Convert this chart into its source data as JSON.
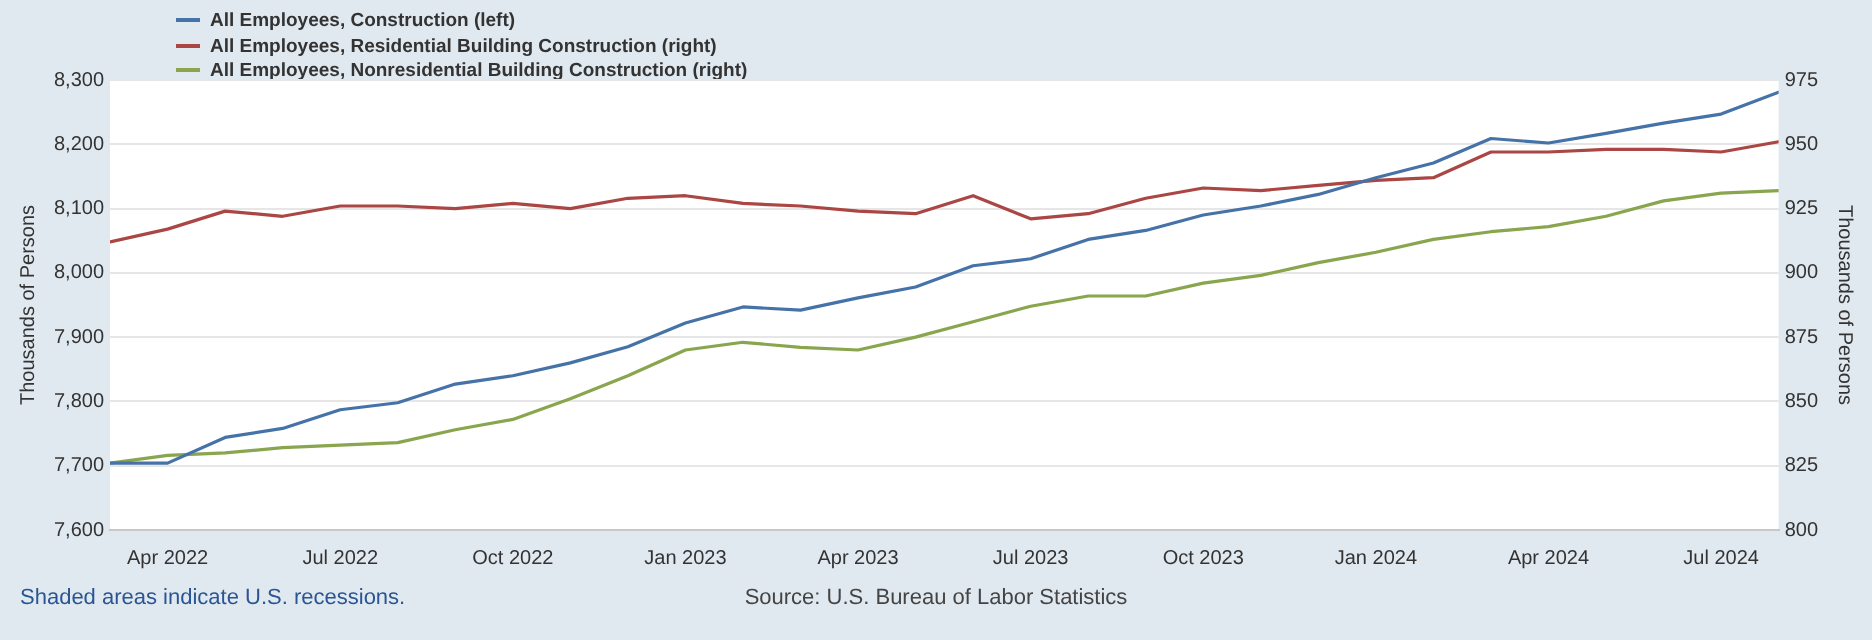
{
  "chart_data": {
    "type": "line",
    "ylabel": "Thousands of Persons",
    "y2label": "Thousands of Persons",
    "x": [
      "2022-03",
      "2022-04",
      "2022-05",
      "2022-06",
      "2022-07",
      "2022-08",
      "2022-09",
      "2022-10",
      "2022-11",
      "2022-12",
      "2023-01",
      "2023-02",
      "2023-03",
      "2023-04",
      "2023-05",
      "2023-06",
      "2023-07",
      "2023-08",
      "2023-09",
      "2023-10",
      "2023-11",
      "2023-12",
      "2024-01",
      "2024-02",
      "2024-03",
      "2024-04",
      "2024-05",
      "2024-06",
      "2024-07",
      "2024-08"
    ],
    "series": [
      {
        "name": "All Employees, Construction (left)",
        "color": "#4572a7",
        "values": [
          7704,
          7704,
          7744,
          7758,
          7787,
          7798,
          7827,
          7840,
          7860,
          7885,
          7922,
          7947,
          7942,
          7961,
          7978,
          8011,
          8022,
          8052,
          8066,
          8090,
          8104,
          8122,
          8148,
          8171,
          8209,
          8202,
          8217,
          8233,
          8247,
          8281
        ]
      },
      {
        "name": "All Employees, Residential Building Construction (right)",
        "color": "#aa4643",
        "axis": "y2",
        "values": [
          912,
          917,
          924,
          922,
          926,
          926,
          925,
          927,
          925,
          929,
          930,
          927,
          926,
          924,
          923,
          930,
          921,
          923,
          929,
          933,
          932,
          934,
          936,
          937,
          947,
          947,
          948,
          948,
          947,
          951
        ]
      },
      {
        "name": "All Employees, Nonresidential Building Construction (right)",
        "color": "#89a54e",
        "axis": "y2",
        "values": [
          826,
          829,
          830,
          832,
          833,
          834,
          839,
          843,
          851,
          860,
          870,
          873,
          871,
          870,
          875,
          881,
          887,
          891,
          891,
          896,
          899,
          904,
          908,
          913,
          916,
          918,
          922,
          928,
          931,
          932
        ]
      }
    ],
    "xlim": [
      "2022-03",
      "2024-08"
    ],
    "xticks": [
      {
        "value": "2022-04",
        "label": "Apr 2022"
      },
      {
        "value": "2022-07",
        "label": "Jul 2022"
      },
      {
        "value": "2022-10",
        "label": "Oct 2022"
      },
      {
        "value": "2023-01",
        "label": "Jan 2023"
      },
      {
        "value": "2023-04",
        "label": "Apr 2023"
      },
      {
        "value": "2023-07",
        "label": "Jul 2023"
      },
      {
        "value": "2023-10",
        "label": "Oct 2023"
      },
      {
        "value": "2024-01",
        "label": "Jan 2024"
      },
      {
        "value": "2024-04",
        "label": "Apr 2024"
      },
      {
        "value": "2024-07",
        "label": "Jul 2024"
      }
    ],
    "ylim": [
      7600,
      8300
    ],
    "yticks": [
      {
        "value": 7600,
        "label": "7,600"
      },
      {
        "value": 7700,
        "label": "7,700"
      },
      {
        "value": 7800,
        "label": "7,800"
      },
      {
        "value": 7900,
        "label": "7,900"
      },
      {
        "value": 8000,
        "label": "8,000"
      },
      {
        "value": 8100,
        "label": "8,100"
      },
      {
        "value": 8200,
        "label": "8,200"
      },
      {
        "value": 8300,
        "label": "8,300"
      }
    ],
    "y2lim": [
      800,
      975
    ],
    "y2ticks": [
      800,
      825,
      850,
      875,
      900,
      925,
      950,
      975
    ],
    "grid": "y",
    "legend": "top left",
    "marker": "none",
    "line_style": "solid",
    "annotations": [
      "Shaded areas indicate U.S. recessions.",
      "Source: U.S. Bureau of Labor Statistics"
    ]
  }
}
